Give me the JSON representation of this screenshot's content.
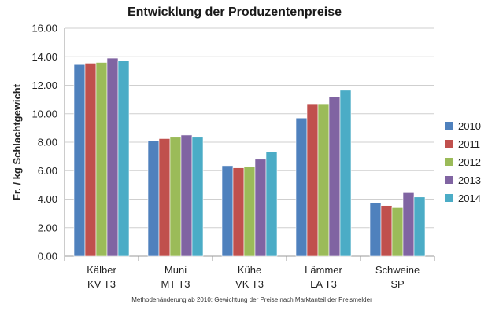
{
  "chart_data": {
    "type": "bar",
    "title": "Entwicklung der Produzentenpreise",
    "ylabel": "Fr. / kg Schlachtgewicht",
    "xlabel": "",
    "ylim": [
      0,
      16
    ],
    "ytick_step": 2,
    "ytick_labels": [
      "0.00",
      "2.00",
      "4.00",
      "6.00",
      "8.00",
      "10.00",
      "12.00",
      "14.00",
      "16.00"
    ],
    "grid": true,
    "legend_position": "right",
    "categories": [
      [
        "Kälber",
        "KV T3"
      ],
      [
        "Muni",
        "MT T3"
      ],
      [
        "Kühe",
        "VK T3"
      ],
      [
        "Lämmer",
        "LA T3"
      ],
      [
        "Schweine",
        "SP"
      ]
    ],
    "series": [
      {
        "name": "2010",
        "color": "#4F81BD",
        "values": [
          13.45,
          8.1,
          6.35,
          9.7,
          3.75
        ]
      },
      {
        "name": "2011",
        "color": "#C0504D",
        "values": [
          13.55,
          8.25,
          6.2,
          10.7,
          3.55
        ]
      },
      {
        "name": "2012",
        "color": "#9BBB59",
        "values": [
          13.6,
          8.4,
          6.25,
          10.7,
          3.4
        ]
      },
      {
        "name": "2013",
        "color": "#8064A2",
        "values": [
          13.9,
          8.5,
          6.8,
          11.2,
          4.45
        ]
      },
      {
        "name": "2014",
        "color": "#4BACC6",
        "values": [
          13.7,
          8.4,
          7.35,
          11.65,
          4.15
        ]
      }
    ],
    "footnote": "Methodenänderung ab 2010: Gewichtung der Preise nach Marktanteil der Preismelder"
  }
}
